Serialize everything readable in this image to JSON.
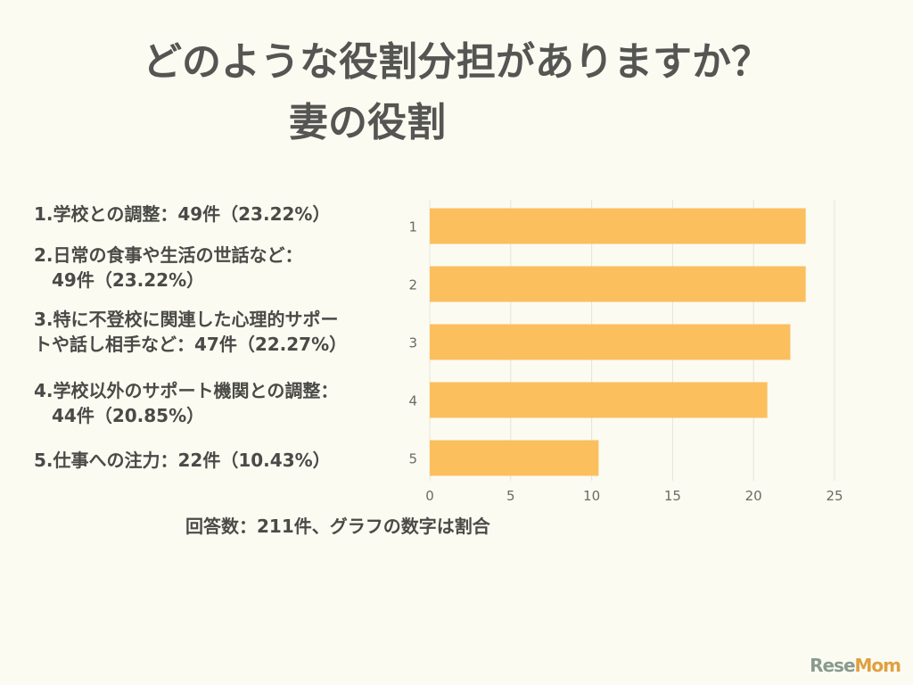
{
  "title": {
    "line1": "どのような役割分担がありますか？",
    "line2": "妻の役割"
  },
  "labels": [
    "1.学校との調整：49件（23.22%）",
    "2.日常の食事や生活の世話など：\n　49件（23.22%）",
    "3.特に不登校に関連した心理的サポー\nトや話し相手など：47件（22.27%）",
    "4.学校以外のサポート機関との調整：\n　44件（20.85%）",
    "5.仕事への注力：22件（10.43%）"
  ],
  "footnote": "回答数：211件、グラフの数字は割合",
  "logo": "ReseMom",
  "chart_data": {
    "type": "bar",
    "orientation": "horizontal",
    "categories": [
      "1",
      "2",
      "3",
      "4",
      "5"
    ],
    "values": [
      23.22,
      23.22,
      22.27,
      20.85,
      10.43
    ],
    "xlim": [
      0,
      25
    ],
    "xticks": [
      0,
      5,
      10,
      15,
      20,
      25
    ],
    "grid": true,
    "bar_color": "#fbbf5e",
    "title": "",
    "xlabel": "",
    "ylabel": ""
  }
}
